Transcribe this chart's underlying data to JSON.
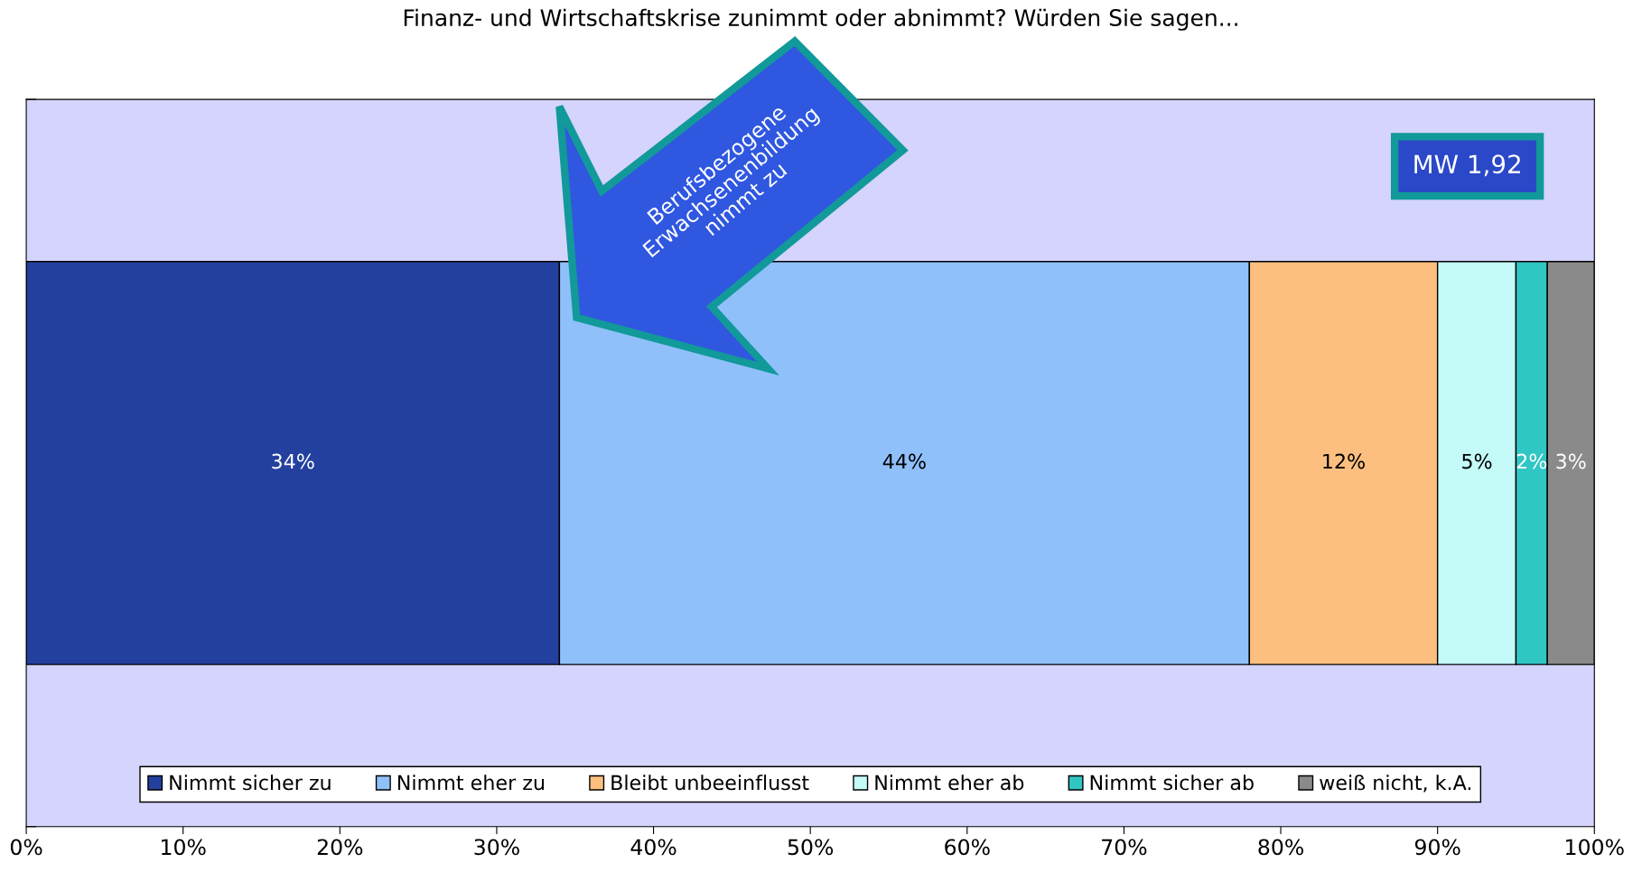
{
  "chart_data": {
    "type": "bar",
    "orientation": "horizontal",
    "stacked": true,
    "title": "Finanz- und Wirtschaftskrise zunimmt oder abnimmt? Würden Sie sagen...",
    "categories": [
      null
    ],
    "series": [
      {
        "name": "Nimmt sicher zu",
        "color": "#24409f",
        "values": [
          34
        ],
        "value_labels": [
          "34%"
        ]
      },
      {
        "name": "Nimmt eher zu",
        "color": "#8fc0fa",
        "values": [
          44
        ],
        "value_labels": [
          "44%"
        ]
      },
      {
        "name": "Bleibt unbeeinflusst",
        "color": "#fdbf80",
        "values": [
          12
        ],
        "value_labels": [
          "12%"
        ]
      },
      {
        "name": "Nimmt eher ab",
        "color": "#c4fbf8",
        "values": [
          5
        ],
        "value_labels": [
          "5%"
        ]
      },
      {
        "name": "Nimmt sicher ab",
        "color": "#30c6c4",
        "values": [
          2
        ],
        "value_labels": [
          "2%"
        ]
      },
      {
        "name": "weiß nicht, k.A.",
        "color": "#8a8a8a",
        "values": [
          3
        ],
        "value_labels": [
          "3%"
        ]
      }
    ],
    "xlim": [
      0,
      100
    ],
    "xticks": [
      {
        "value": 0,
        "label": "0%"
      },
      {
        "value": 10,
        "label": "10%"
      },
      {
        "value": 20,
        "label": "20%"
      },
      {
        "value": 30,
        "label": "30%"
      },
      {
        "value": 40,
        "label": "40%"
      },
      {
        "value": 50,
        "label": "50%"
      },
      {
        "value": 60,
        "label": "60%"
      },
      {
        "value": 70,
        "label": "70%"
      },
      {
        "value": 80,
        "label": "80%"
      },
      {
        "value": 90,
        "label": "90%"
      },
      {
        "value": 100,
        "label": "100%"
      }
    ],
    "tick_labels": "x",
    "grid": false,
    "legend": "bottom",
    "annotations": [
      "Berufsbezogene\nErwachsenenbildung\nnimmt zu",
      "MW 1,92"
    ]
  }
}
